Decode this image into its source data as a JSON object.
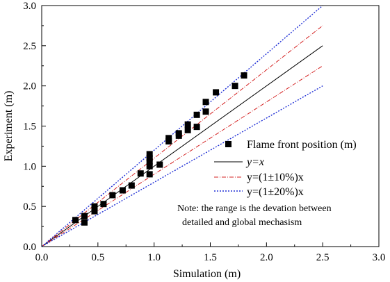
{
  "chart_data": {
    "type": "scatter",
    "xlabel": "Simulation (m)",
    "ylabel": "Experiment (m)",
    "xlim": [
      0.0,
      3.0
    ],
    "ylim": [
      0.0,
      3.0
    ],
    "xticks": [
      "0.0",
      "0.5",
      "1.0",
      "1.5",
      "2.0",
      "2.5",
      "3.0"
    ],
    "yticks": [
      "0.0",
      "0.5",
      "1.0",
      "1.5",
      "2.0",
      "2.5",
      "3.0"
    ],
    "grid": false,
    "legend_position": "lower-right",
    "series": [
      {
        "name": "Flame front position (m)",
        "kind": "points",
        "color": "#000000",
        "points": [
          [
            0.3,
            0.33
          ],
          [
            0.38,
            0.3
          ],
          [
            0.38,
            0.38
          ],
          [
            0.47,
            0.44
          ],
          [
            0.47,
            0.5
          ],
          [
            0.55,
            0.53
          ],
          [
            0.63,
            0.64
          ],
          [
            0.72,
            0.7
          ],
          [
            0.8,
            0.76
          ],
          [
            0.88,
            0.91
          ],
          [
            0.96,
            0.9
          ],
          [
            0.96,
            1.0
          ],
          [
            0.96,
            1.06
          ],
          [
            0.96,
            1.1
          ],
          [
            0.96,
            1.15
          ],
          [
            1.05,
            1.02
          ],
          [
            1.13,
            1.31
          ],
          [
            1.13,
            1.35
          ],
          [
            1.22,
            1.38
          ],
          [
            1.22,
            1.41
          ],
          [
            1.3,
            1.45
          ],
          [
            1.3,
            1.52
          ],
          [
            1.38,
            1.49
          ],
          [
            1.38,
            1.64
          ],
          [
            1.46,
            1.68
          ],
          [
            1.46,
            1.8
          ],
          [
            1.55,
            1.92
          ],
          [
            1.72,
            2.0
          ],
          [
            1.8,
            2.13
          ]
        ]
      },
      {
        "name": "y=x",
        "kind": "line",
        "slope": 1.0,
        "style": "solid",
        "color": "#000000"
      },
      {
        "name": "y=(1±10%)x",
        "kind": "band",
        "slopes": [
          1.1,
          0.9
        ],
        "style": "dashdot",
        "color": "#d42020"
      },
      {
        "name": "y=(1±20%)x",
        "kind": "band",
        "slopes": [
          1.2,
          0.8
        ],
        "style": "dotted",
        "color": "#1f2fd6"
      }
    ],
    "legend": {
      "flame_label": "Flame front position (m)",
      "yx_label": "y=x",
      "ten_label": "y=(1±10%)x",
      "twenty_label": "y=(1±20%)x"
    },
    "note_lines": [
      "Note: the range is the devation between",
      "detailed and global mechasism"
    ]
  }
}
